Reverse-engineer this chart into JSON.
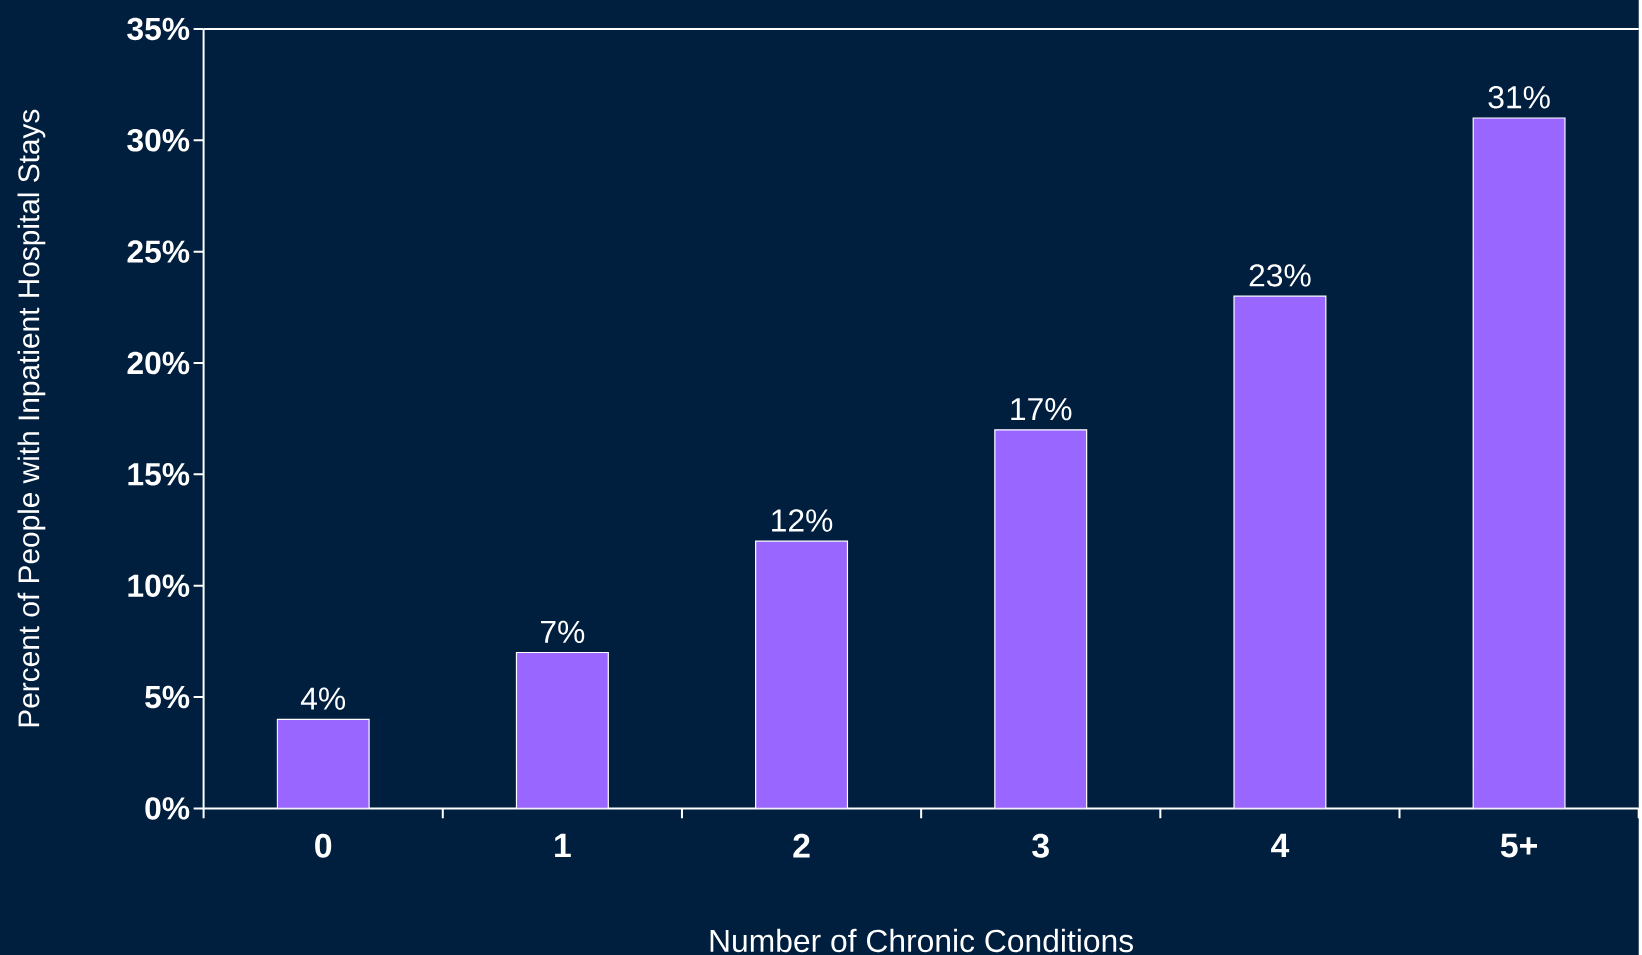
{
  "chart_data": {
    "type": "bar",
    "xlabel": "Number of Chronic Conditions",
    "ylabel": "Percent of People with Inpatient Hospital Stays",
    "categories": [
      "0",
      "1",
      "2",
      "3",
      "4",
      "5+"
    ],
    "values": [
      4,
      7,
      12,
      17,
      23,
      31
    ],
    "value_labels": [
      "4%",
      "7%",
      "12%",
      "17%",
      "23%",
      "31%"
    ],
    "color": "#9966ff",
    "ylim": [
      0,
      35
    ],
    "yticks": [
      {
        "value": 0,
        "label": "0%"
      },
      {
        "value": 5,
        "label": "5%"
      },
      {
        "value": 10,
        "label": "10%"
      },
      {
        "value": 15,
        "label": "15%"
      },
      {
        "value": 20,
        "label": "20%"
      },
      {
        "value": 25,
        "label": "25%"
      },
      {
        "value": 30,
        "label": "30%"
      },
      {
        "value": 35,
        "label": "35%"
      }
    ],
    "grid": false
  }
}
